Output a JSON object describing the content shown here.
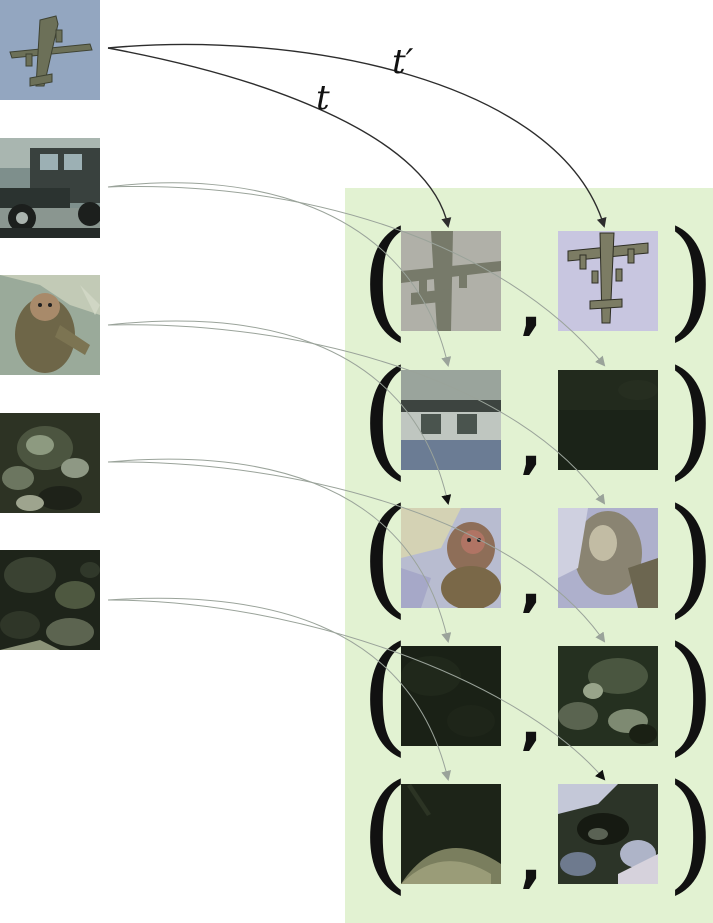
{
  "labels": {
    "t": "t",
    "t_prime": "t′"
  },
  "pair_separator": ",",
  "images": [
    {
      "name": "airplane",
      "bg": "#8fa3bd"
    },
    {
      "name": "vintage-car",
      "bg": "#4a5a60"
    },
    {
      "name": "monkey",
      "bg": "#8a9a88"
    },
    {
      "name": "monkey-closeup",
      "bg": "#2a3020"
    },
    {
      "name": "dark-texture",
      "bg": "#1c2218"
    }
  ],
  "colors": {
    "panel": "#e2f2d2",
    "arrow_t": "#2d2d2d",
    "arrow_faint": "#9aa39a"
  }
}
